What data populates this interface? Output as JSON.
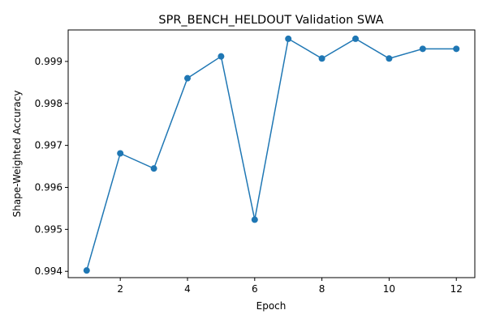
{
  "chart_data": {
    "type": "line",
    "title": "SPR_BENCH_HELDOUT Validation SWA",
    "xlabel": "Epoch",
    "ylabel": "Shape-Weighted Accuracy",
    "x": [
      1,
      2,
      3,
      4,
      5,
      6,
      7,
      8,
      9,
      10,
      11,
      12
    ],
    "series": [
      {
        "values": [
          0.99402,
          0.99681,
          0.99645,
          0.9986,
          0.99912,
          0.99523,
          0.99954,
          0.99907,
          0.99954,
          0.99907,
          0.9993,
          0.9993
        ],
        "color": "#1f77b4",
        "marker": "circle"
      }
    ],
    "xlim": [
      0.45,
      12.55
    ],
    "ylim": [
      0.99385,
      0.99975
    ],
    "xticks": [
      2,
      4,
      6,
      8,
      10,
      12
    ],
    "xtick_labels": [
      "2",
      "4",
      "6",
      "8",
      "10",
      "12"
    ],
    "yticks": [
      0.994,
      0.995,
      0.996,
      0.997,
      0.998,
      0.999
    ],
    "ytick_labels": [
      "0.994",
      "0.995",
      "0.996",
      "0.997",
      "0.998",
      "0.999"
    ],
    "grid": false,
    "legend": false
  }
}
